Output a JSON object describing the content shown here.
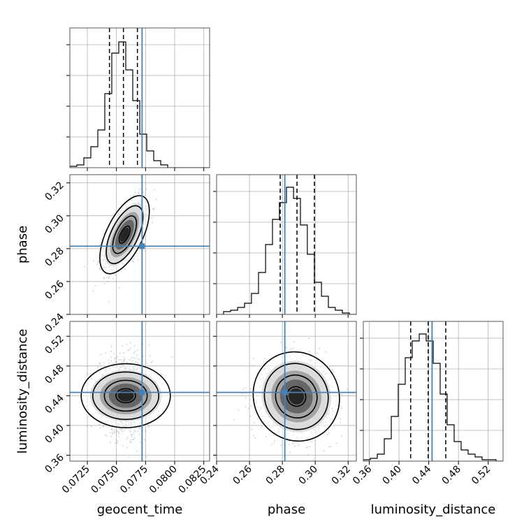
{
  "chart_data": {
    "type": "corner",
    "parameters": [
      "geocent_time",
      "phase",
      "luminosity_distance"
    ],
    "truths": {
      "geocent_time": 0.0772,
      "phase": 0.2815,
      "luminosity_distance": 0.4445
    },
    "colors": {
      "truth": "#4682b4",
      "hist": "#000000",
      "grid": "#b0b0b0",
      "scatter": "#9a9a9a"
    },
    "grid": true,
    "axes": {
      "geocent_time": {
        "range": [
          0.071,
          0.083
        ],
        "ticks": [
          0.0725,
          0.075,
          0.0775,
          0.08,
          0.0825
        ],
        "tick_labels": [
          "0.0725",
          "0.0750",
          "0.0775",
          "0.0800",
          "0.0825"
        ],
        "label": "geocent_time"
      },
      "phase": {
        "range": [
          0.24,
          0.325
        ],
        "ticks": [
          0.24,
          0.26,
          0.28,
          0.3,
          0.32
        ],
        "tick_labels": [
          "0.24",
          "0.26",
          "0.28",
          "0.30",
          "0.32"
        ],
        "label": "phase"
      },
      "luminosity_distance": {
        "range": [
          0.352,
          0.54
        ],
        "ticks": [
          0.36,
          0.4,
          0.44,
          0.48,
          0.52
        ],
        "tick_labels": [
          "0.36",
          "0.40",
          "0.44",
          "0.48",
          "0.52"
        ],
        "label": "luminosity_distance"
      }
    },
    "marginals": [
      {
        "param": "geocent_time",
        "quantiles": [
          0.0744,
          0.0756,
          0.0768
        ],
        "hist_ylim": [
          0,
          1.0
        ],
        "bin_edges": [
          0.071,
          0.0716,
          0.0722,
          0.0728,
          0.0734,
          0.074,
          0.0746,
          0.0752,
          0.0758,
          0.0764,
          0.077,
          0.0776,
          0.0782,
          0.0788,
          0.0794,
          0.08,
          0.0806,
          0.0812,
          0.0818,
          0.0824,
          0.083
        ],
        "counts": [
          0.01,
          0.02,
          0.07,
          0.15,
          0.27,
          0.53,
          0.82,
          0.9,
          0.7,
          0.48,
          0.24,
          0.12,
          0.05,
          0.02,
          0.0,
          0.0,
          0.0,
          0.0,
          0.0,
          0.0
        ]
      },
      {
        "param": "phase",
        "quantiles": [
          0.2787,
          0.2889,
          0.2995
        ],
        "hist_ylim": [
          0,
          1.0
        ],
        "bin_edges": [
          0.24,
          0.2442,
          0.2485,
          0.2528,
          0.257,
          0.2612,
          0.2655,
          0.2698,
          0.274,
          0.2782,
          0.2825,
          0.2868,
          0.291,
          0.2952,
          0.2995,
          0.3038,
          0.308,
          0.3122,
          0.3165,
          0.3208,
          0.325
        ],
        "counts": [
          0.0,
          0.02,
          0.03,
          0.05,
          0.08,
          0.15,
          0.3,
          0.5,
          0.68,
          0.8,
          0.91,
          0.83,
          0.64,
          0.43,
          0.23,
          0.13,
          0.05,
          0.03,
          0.01,
          0.0
        ]
      },
      {
        "param": "luminosity_distance",
        "quantiles": [
          0.4157,
          0.4393,
          0.4629
        ],
        "hist_ylim": [
          0,
          1.0
        ],
        "bin_edges": [
          0.352,
          0.3614,
          0.3708,
          0.3802,
          0.3896,
          0.399,
          0.4084,
          0.4178,
          0.4272,
          0.4366,
          0.446,
          0.4554,
          0.4648,
          0.4742,
          0.4836,
          0.493,
          0.5024,
          0.5118,
          0.5212,
          0.5306,
          0.54
        ],
        "counts": [
          0.01,
          0.02,
          0.05,
          0.16,
          0.32,
          0.55,
          0.74,
          0.86,
          0.91,
          0.86,
          0.7,
          0.48,
          0.26,
          0.14,
          0.08,
          0.05,
          0.03,
          0.01,
          0.01,
          0.0
        ]
      }
    ],
    "joints": [
      {
        "x": "geocent_time",
        "y": "phase",
        "mean": [
          0.0757,
          0.2885
        ],
        "std": [
          0.00085,
          0.0095
        ],
        "corr": 0.6
      },
      {
        "x": "geocent_time",
        "y": "luminosity_distance",
        "mean": [
          0.0758,
          0.44
        ],
        "std": [
          0.0011,
          0.024
        ],
        "corr": 0.0
      },
      {
        "x": "phase",
        "y": "luminosity_distance",
        "mean": [
          0.2885,
          0.439
        ],
        "std": [
          0.0105,
          0.024
        ],
        "corr": -0.05
      }
    ]
  }
}
